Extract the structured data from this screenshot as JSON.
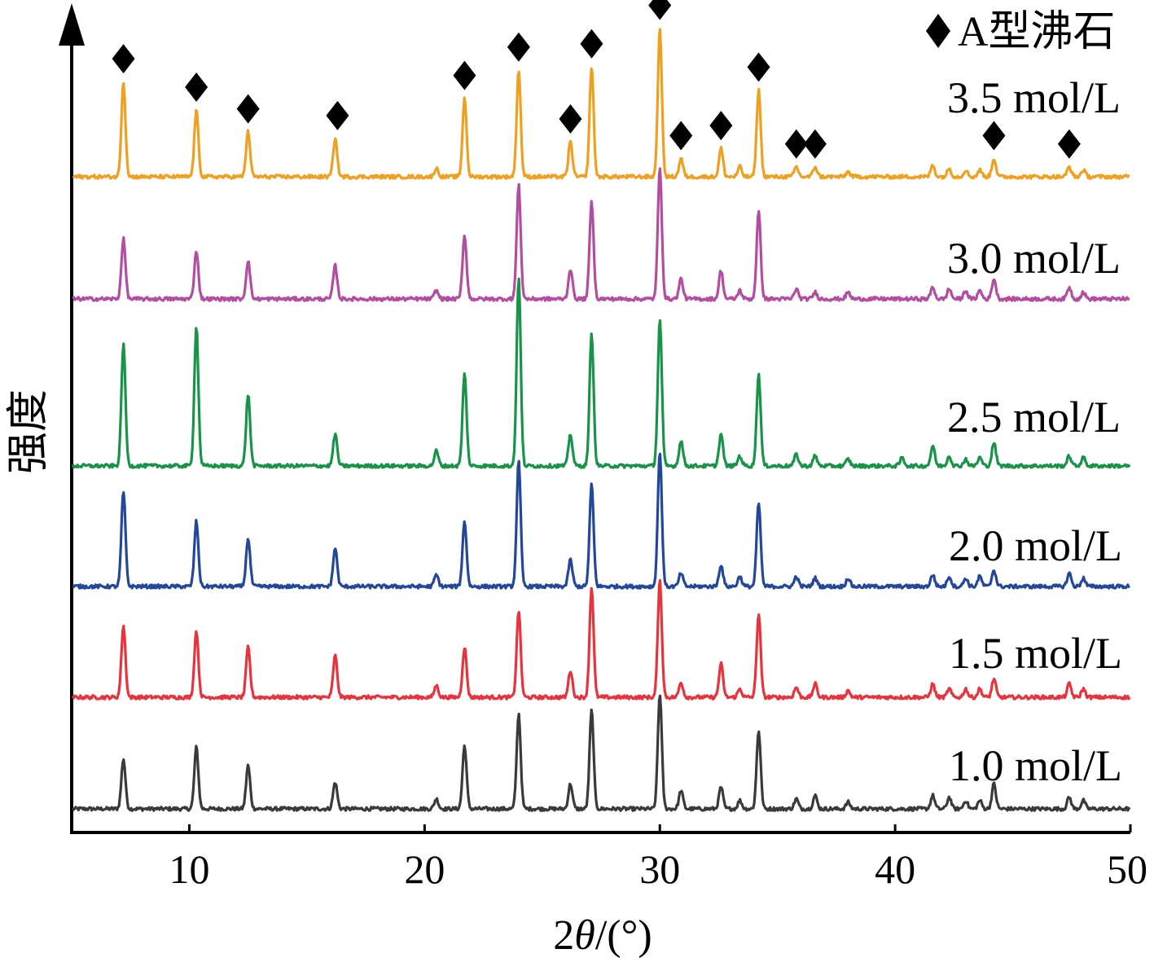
{
  "chart_data": {
    "type": "line",
    "xlabel_prefix": "2",
    "xlabel_theta": "θ",
    "xlabel_suffix": "/(°)",
    "ylabel": "强度",
    "xlim": [
      5,
      50
    ],
    "x_ticks": [
      10,
      20,
      30,
      40,
      50
    ],
    "legend": {
      "marker": "◆",
      "label": "A型沸石",
      "placement": "top-right"
    },
    "peak_marker_series": "3.5 mol/L",
    "marker_positions": [
      7.2,
      10.3,
      12.5,
      16.3,
      21.7,
      24.0,
      26.2,
      27.1,
      30.0,
      30.9,
      32.6,
      34.2,
      35.8,
      36.6,
      44.2,
      47.4
    ],
    "series": [
      {
        "name": "1.0 mol/L",
        "color": "#3a3a3a",
        "peaks": [
          [
            7.2,
            0.3
          ],
          [
            10.3,
            0.37
          ],
          [
            12.5,
            0.26
          ],
          [
            16.2,
            0.16
          ],
          [
            20.5,
            0.06
          ],
          [
            21.7,
            0.38
          ],
          [
            24.0,
            0.57
          ],
          [
            26.2,
            0.15
          ],
          [
            27.1,
            0.59
          ],
          [
            30.0,
            0.69
          ],
          [
            30.9,
            0.11
          ],
          [
            32.6,
            0.13
          ],
          [
            33.4,
            0.05
          ],
          [
            34.2,
            0.47
          ],
          [
            35.8,
            0.06
          ],
          [
            36.6,
            0.08
          ],
          [
            38.0,
            0.04
          ],
          [
            41.6,
            0.08
          ],
          [
            42.3,
            0.07
          ],
          [
            43.0,
            0.05
          ],
          [
            43.6,
            0.05
          ],
          [
            44.2,
            0.15
          ],
          [
            47.4,
            0.07
          ],
          [
            48.0,
            0.05
          ]
        ]
      },
      {
        "name": "1.5 mol/L",
        "color": "#e8323c",
        "peaks": [
          [
            7.2,
            0.43
          ],
          [
            10.3,
            0.4
          ],
          [
            12.5,
            0.3
          ],
          [
            16.2,
            0.25
          ],
          [
            20.5,
            0.07
          ],
          [
            21.7,
            0.3
          ],
          [
            24.0,
            0.52
          ],
          [
            26.2,
            0.16
          ],
          [
            27.1,
            0.66
          ],
          [
            30.0,
            0.7
          ],
          [
            30.9,
            0.09
          ],
          [
            32.6,
            0.2
          ],
          [
            33.4,
            0.05
          ],
          [
            34.2,
            0.5
          ],
          [
            35.8,
            0.06
          ],
          [
            36.6,
            0.08
          ],
          [
            38.0,
            0.04
          ],
          [
            41.6,
            0.08
          ],
          [
            42.3,
            0.05
          ],
          [
            43.0,
            0.05
          ],
          [
            43.6,
            0.05
          ],
          [
            44.2,
            0.11
          ],
          [
            47.4,
            0.08
          ],
          [
            48.0,
            0.05
          ]
        ]
      },
      {
        "name": "2.0 mol/L",
        "color": "#23479a",
        "peaks": [
          [
            7.2,
            0.57
          ],
          [
            10.3,
            0.39
          ],
          [
            12.5,
            0.29
          ],
          [
            16.2,
            0.23
          ],
          [
            20.5,
            0.07
          ],
          [
            21.7,
            0.39
          ],
          [
            24.0,
            0.75
          ],
          [
            26.2,
            0.16
          ],
          [
            27.1,
            0.61
          ],
          [
            30.0,
            0.81
          ],
          [
            30.9,
            0.08
          ],
          [
            32.6,
            0.13
          ],
          [
            33.4,
            0.06
          ],
          [
            34.2,
            0.5
          ],
          [
            35.8,
            0.06
          ],
          [
            36.6,
            0.05
          ],
          [
            38.0,
            0.05
          ],
          [
            41.6,
            0.07
          ],
          [
            42.3,
            0.06
          ],
          [
            43.0,
            0.05
          ],
          [
            43.6,
            0.06
          ],
          [
            44.2,
            0.1
          ],
          [
            47.4,
            0.08
          ],
          [
            48.0,
            0.05
          ]
        ]
      },
      {
        "name": "2.5 mol/L",
        "color": "#179447",
        "peaks": [
          [
            7.2,
            0.73
          ],
          [
            10.3,
            0.84
          ],
          [
            12.5,
            0.43
          ],
          [
            16.2,
            0.19
          ],
          [
            20.5,
            0.09
          ],
          [
            21.7,
            0.55
          ],
          [
            24.0,
            1.13
          ],
          [
            26.2,
            0.19
          ],
          [
            27.1,
            0.79
          ],
          [
            30.0,
            0.88
          ],
          [
            30.9,
            0.15
          ],
          [
            32.6,
            0.19
          ],
          [
            33.4,
            0.06
          ],
          [
            34.2,
            0.55
          ],
          [
            35.8,
            0.07
          ],
          [
            36.6,
            0.06
          ],
          [
            38.0,
            0.04
          ],
          [
            40.3,
            0.05
          ],
          [
            41.6,
            0.12
          ],
          [
            42.3,
            0.06
          ],
          [
            43.0,
            0.04
          ],
          [
            43.6,
            0.05
          ],
          [
            44.2,
            0.14
          ],
          [
            47.4,
            0.06
          ],
          [
            48.0,
            0.05
          ]
        ]
      },
      {
        "name": "3.0 mol/L",
        "color": "#b34da1",
        "peaks": [
          [
            7.2,
            0.36
          ],
          [
            10.3,
            0.29
          ],
          [
            12.5,
            0.23
          ],
          [
            16.2,
            0.2
          ],
          [
            20.5,
            0.05
          ],
          [
            21.7,
            0.38
          ],
          [
            24.0,
            0.68
          ],
          [
            26.2,
            0.18
          ],
          [
            27.1,
            0.58
          ],
          [
            30.0,
            0.78
          ],
          [
            30.9,
            0.12
          ],
          [
            32.6,
            0.17
          ],
          [
            33.4,
            0.05
          ],
          [
            34.2,
            0.52
          ],
          [
            35.8,
            0.06
          ],
          [
            36.6,
            0.04
          ],
          [
            38.0,
            0.04
          ],
          [
            41.6,
            0.07
          ],
          [
            42.3,
            0.06
          ],
          [
            43.0,
            0.05
          ],
          [
            43.6,
            0.05
          ],
          [
            44.2,
            0.12
          ],
          [
            47.4,
            0.07
          ],
          [
            48.0,
            0.04
          ]
        ]
      },
      {
        "name": "3.5 mol/L",
        "color": "#f0a020",
        "peaks": [
          [
            7.2,
            0.57
          ],
          [
            10.3,
            0.4
          ],
          [
            12.5,
            0.27
          ],
          [
            16.2,
            0.23
          ],
          [
            20.5,
            0.05
          ],
          [
            21.7,
            0.47
          ],
          [
            24.0,
            0.64
          ],
          [
            26.2,
            0.21
          ],
          [
            27.1,
            0.66
          ],
          [
            30.0,
            0.89
          ],
          [
            30.9,
            0.11
          ],
          [
            32.6,
            0.17
          ],
          [
            33.4,
            0.06
          ],
          [
            34.2,
            0.52
          ],
          [
            35.8,
            0.06
          ],
          [
            36.6,
            0.06
          ],
          [
            38.0,
            0.03
          ],
          [
            41.6,
            0.07
          ],
          [
            42.3,
            0.05
          ],
          [
            43.0,
            0.04
          ],
          [
            43.6,
            0.04
          ],
          [
            44.2,
            0.11
          ],
          [
            47.4,
            0.06
          ],
          [
            48.0,
            0.04
          ]
        ]
      }
    ]
  }
}
